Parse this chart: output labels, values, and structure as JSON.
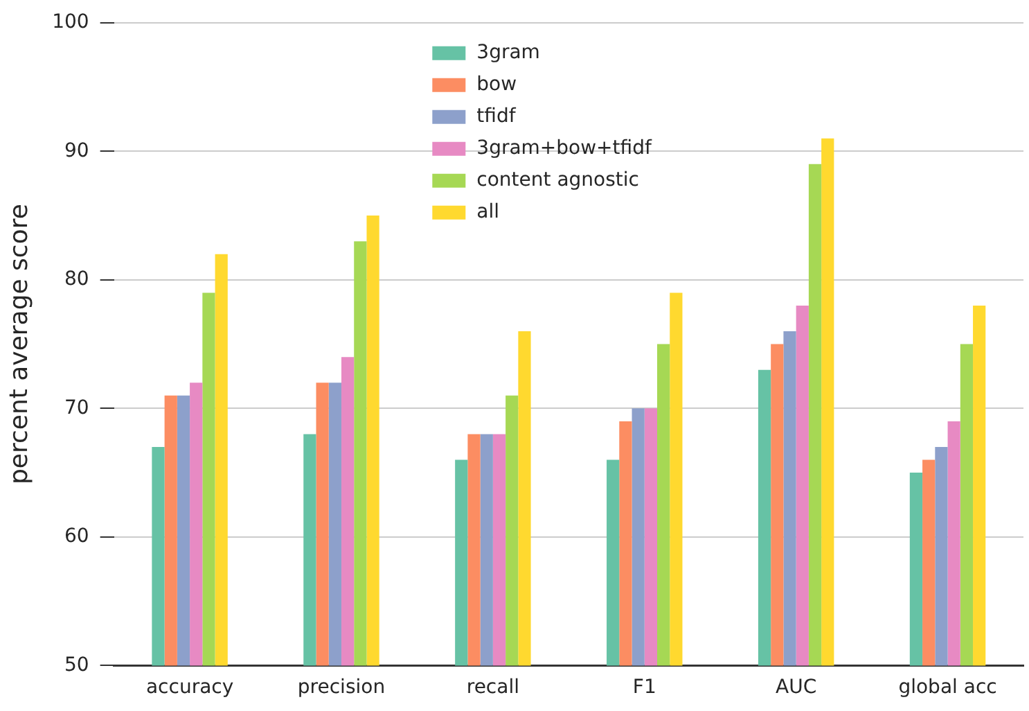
{
  "chart_data": {
    "type": "bar",
    "ylabel": "percent average score",
    "categories": [
      "accuracy",
      "precision",
      "recall",
      "F1",
      "AUC",
      "global acc"
    ],
    "series": [
      {
        "name": "3gram",
        "color": "#66c2a5",
        "values": [
          67,
          68,
          66,
          66,
          73,
          65
        ]
      },
      {
        "name": "bow",
        "color": "#fc8d62",
        "values": [
          71,
          72,
          68,
          69,
          75,
          66
        ]
      },
      {
        "name": "tfidf",
        "color": "#8da0cb",
        "values": [
          71,
          72,
          68,
          70,
          76,
          67
        ]
      },
      {
        "name": "3gram+bow+tfidf",
        "color": "#e78ac3",
        "values": [
          72,
          74,
          68,
          70,
          78,
          69
        ]
      },
      {
        "name": "content agnostic",
        "color": "#a6d854",
        "values": [
          79,
          83,
          71,
          75,
          89,
          75
        ]
      },
      {
        "name": "all",
        "color": "#ffd92f",
        "values": [
          82,
          85,
          76,
          79,
          91,
          78
        ]
      }
    ],
    "ylim": [
      50,
      100
    ],
    "yticks": [
      50,
      60,
      70,
      80,
      90,
      100
    ],
    "grid": "y",
    "legend": "top"
  }
}
